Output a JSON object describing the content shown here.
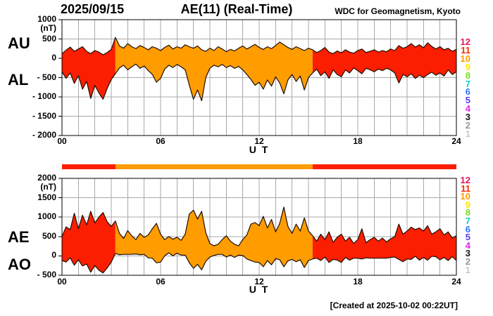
{
  "header": {
    "date": "2025/09/15",
    "title": "AE(11) (Real-Time)",
    "credit": "WDC for Geomagnetism, Kyoto"
  },
  "footer": {
    "created": "[Created at 2025-10-02 00:22UT]"
  },
  "colors": {
    "quiet_red": "#fb1e00",
    "active_orange": "#ff9c00",
    "outline": "#1e0e00",
    "grid": "#a9a9a9",
    "border": "#000000",
    "background": "#ffffff"
  },
  "colorbar": {
    "segments": [
      {
        "from_hour": 0,
        "to_hour": 3.25,
        "color": "#fb1e00"
      },
      {
        "from_hour": 3.25,
        "to_hour": 15.25,
        "color": "#ff9c00"
      },
      {
        "from_hour": 15.25,
        "to_hour": 24,
        "color": "#fb1e00"
      }
    ]
  },
  "legend": {
    "values": [
      12,
      11,
      10,
      9,
      8,
      7,
      6,
      5,
      4,
      3,
      2,
      1
    ],
    "colors": [
      "#e6145a",
      "#ff2800",
      "#ff9800",
      "#ffe400",
      "#7ddc28",
      "#00d8c8",
      "#2878ff",
      "#5c38f0",
      "#dc28e6",
      "#141414",
      "#969696",
      "#c8c8c8"
    ]
  },
  "chart_data": [
    {
      "type": "area",
      "name": "AU-AL",
      "x_axis_label": "U T",
      "y_unit": "(nT)",
      "ylim": [
        -2000,
        1000
      ],
      "x_start_hour": 0,
      "x_end_hour": 24,
      "x_step_hours": 0.25,
      "grid": true,
      "y_ticks": [
        {
          "value": 1000,
          "label": "1000"
        },
        {
          "value": 500,
          "label": "500"
        },
        {
          "value": 0,
          "label": "0"
        },
        {
          "value": -500,
          "label": "- 500"
        },
        {
          "value": -1000,
          "label": "- 1000"
        },
        {
          "value": -1500,
          "label": "- 1500"
        },
        {
          "value": -2000,
          "label": "- 2000"
        }
      ],
      "x_ticks": [
        {
          "hour": 0,
          "label": "00"
        },
        {
          "hour": 6,
          "label": "06"
        },
        {
          "hour": 12,
          "label": "12"
        },
        {
          "hour": 18,
          "label": "18"
        },
        {
          "hour": 24,
          "label": "24"
        }
      ],
      "series": [
        {
          "name": "AU",
          "values": [
            120,
            210,
            290,
            180,
            240,
            300,
            180,
            120,
            200,
            160,
            90,
            150,
            230,
            540,
            320,
            260,
            380,
            300,
            250,
            330,
            280,
            220,
            300,
            260,
            200,
            280,
            340,
            240,
            300,
            260,
            350,
            300,
            260,
            320,
            220,
            180,
            260,
            200,
            300,
            240,
            170,
            230,
            190,
            260,
            320,
            240,
            300,
            360,
            280,
            230,
            300,
            250,
            330,
            420,
            350,
            280,
            230,
            300,
            250,
            200,
            260,
            220,
            150,
            200,
            280,
            160,
            120,
            190,
            140,
            220,
            160,
            130,
            200,
            240,
            150,
            180,
            220,
            160,
            200,
            170,
            240,
            200,
            330,
            260,
            300,
            380,
            290,
            350,
            270,
            400,
            310,
            240,
            300,
            220,
            260,
            180,
            230
          ]
        },
        {
          "name": "AL",
          "values": [
            -350,
            -520,
            -380,
            -650,
            -450,
            -800,
            -600,
            -1040,
            -700,
            -900,
            -1060,
            -780,
            -550,
            -400,
            -250,
            -180,
            -300,
            -220,
            -150,
            -260,
            -200,
            -320,
            -420,
            -620,
            -520,
            -280,
            -180,
            -240,
            -160,
            -220,
            -300,
            -700,
            -1060,
            -820,
            -1100,
            -500,
            -260,
            -180,
            -220,
            -160,
            -240,
            -190,
            -260,
            -210,
            -300,
            -420,
            -550,
            -700,
            -620,
            -800,
            -560,
            -720,
            -480,
            -640,
            -920,
            -560,
            -420,
            -600,
            -460,
            -820,
            -500,
            -380,
            -280,
            -450,
            -350,
            -520,
            -300,
            -420,
            -480,
            -300,
            -380,
            -250,
            -320,
            -400,
            -260,
            -300,
            -350,
            -280,
            -320,
            -260,
            -300,
            -380,
            -640,
            -420,
            -480,
            -400,
            -520,
            -440,
            -500,
            -420,
            -360,
            -440,
            -380,
            -460,
            -300,
            -420,
            -350
          ]
        }
      ]
    },
    {
      "type": "area",
      "name": "AE-AO",
      "x_axis_label": "U T",
      "y_unit": "(nT)",
      "ylim": [
        -500,
        2000
      ],
      "x_start_hour": 0,
      "x_end_hour": 24,
      "x_step_hours": 0.25,
      "grid": true,
      "y_ticks": [
        {
          "value": 2000,
          "label": "2000"
        },
        {
          "value": 1500,
          "label": "1500"
        },
        {
          "value": 1000,
          "label": "1000"
        },
        {
          "value": 500,
          "label": "500"
        },
        {
          "value": 0,
          "label": "0"
        },
        {
          "value": -500,
          "label": "- 500"
        }
      ],
      "x_ticks": [
        {
          "hour": 0,
          "label": "00"
        },
        {
          "hour": 6,
          "label": "06"
        },
        {
          "hour": 12,
          "label": "12"
        },
        {
          "hour": 18,
          "label": "18"
        },
        {
          "hour": 24,
          "label": "24"
        }
      ],
      "series": [
        {
          "name": "AE",
          "values": [
            500,
            750,
            680,
            1100,
            700,
            1050,
            800,
            1150,
            850,
            1000,
            1120,
            880,
            760,
            900,
            580,
            450,
            650,
            520,
            420,
            580,
            480,
            540,
            700,
            840,
            560,
            420,
            500,
            430,
            480,
            400,
            560,
            1080,
            1180,
            950,
            1150,
            600,
            320,
            260,
            300,
            420,
            520,
            380,
            300,
            260,
            420,
            540,
            820,
            860,
            780,
            1020,
            720,
            940,
            620,
            840,
            1260,
            760,
            580,
            820,
            640,
            980,
            640,
            520,
            380,
            560,
            420,
            620,
            350,
            480,
            560,
            380,
            480,
            320,
            420,
            700,
            340,
            420,
            480,
            380,
            460,
            360,
            440,
            500,
            820,
            560,
            640,
            740,
            680,
            720,
            640,
            780,
            560,
            620,
            700,
            540,
            620,
            460,
            520
          ]
        },
        {
          "name": "AO",
          "values": [
            -120,
            -160,
            -50,
            -240,
            -100,
            -260,
            -210,
            -420,
            -250,
            -370,
            -440,
            -310,
            -160,
            60,
            30,
            40,
            40,
            40,
            50,
            30,
            40,
            -50,
            -60,
            -180,
            -160,
            0,
            80,
            0,
            70,
            20,
            20,
            -180,
            -320,
            -220,
            -360,
            -140,
            -30,
            10,
            40,
            40,
            -30,
            20,
            -40,
            20,
            10,
            -80,
            -120,
            -160,
            -170,
            -280,
            -120,
            -230,
            -70,
            -100,
            -280,
            -130,
            -90,
            -150,
            -100,
            -300,
            -120,
            -80,
            -60,
            -120,
            -30,
            -170,
            -90,
            -110,
            -170,
            -40,
            -110,
            -60,
            -60,
            -80,
            -50,
            -60,
            -60,
            -60,
            -60,
            -60,
            -40,
            -30,
            -90,
            -150,
            -80,
            -90,
            -10,
            -110,
            -40,
            -110,
            -10,
            -20,
            -100,
            -40,
            -120,
            -20,
            -120,
            -60
          ]
        }
      ]
    }
  ]
}
